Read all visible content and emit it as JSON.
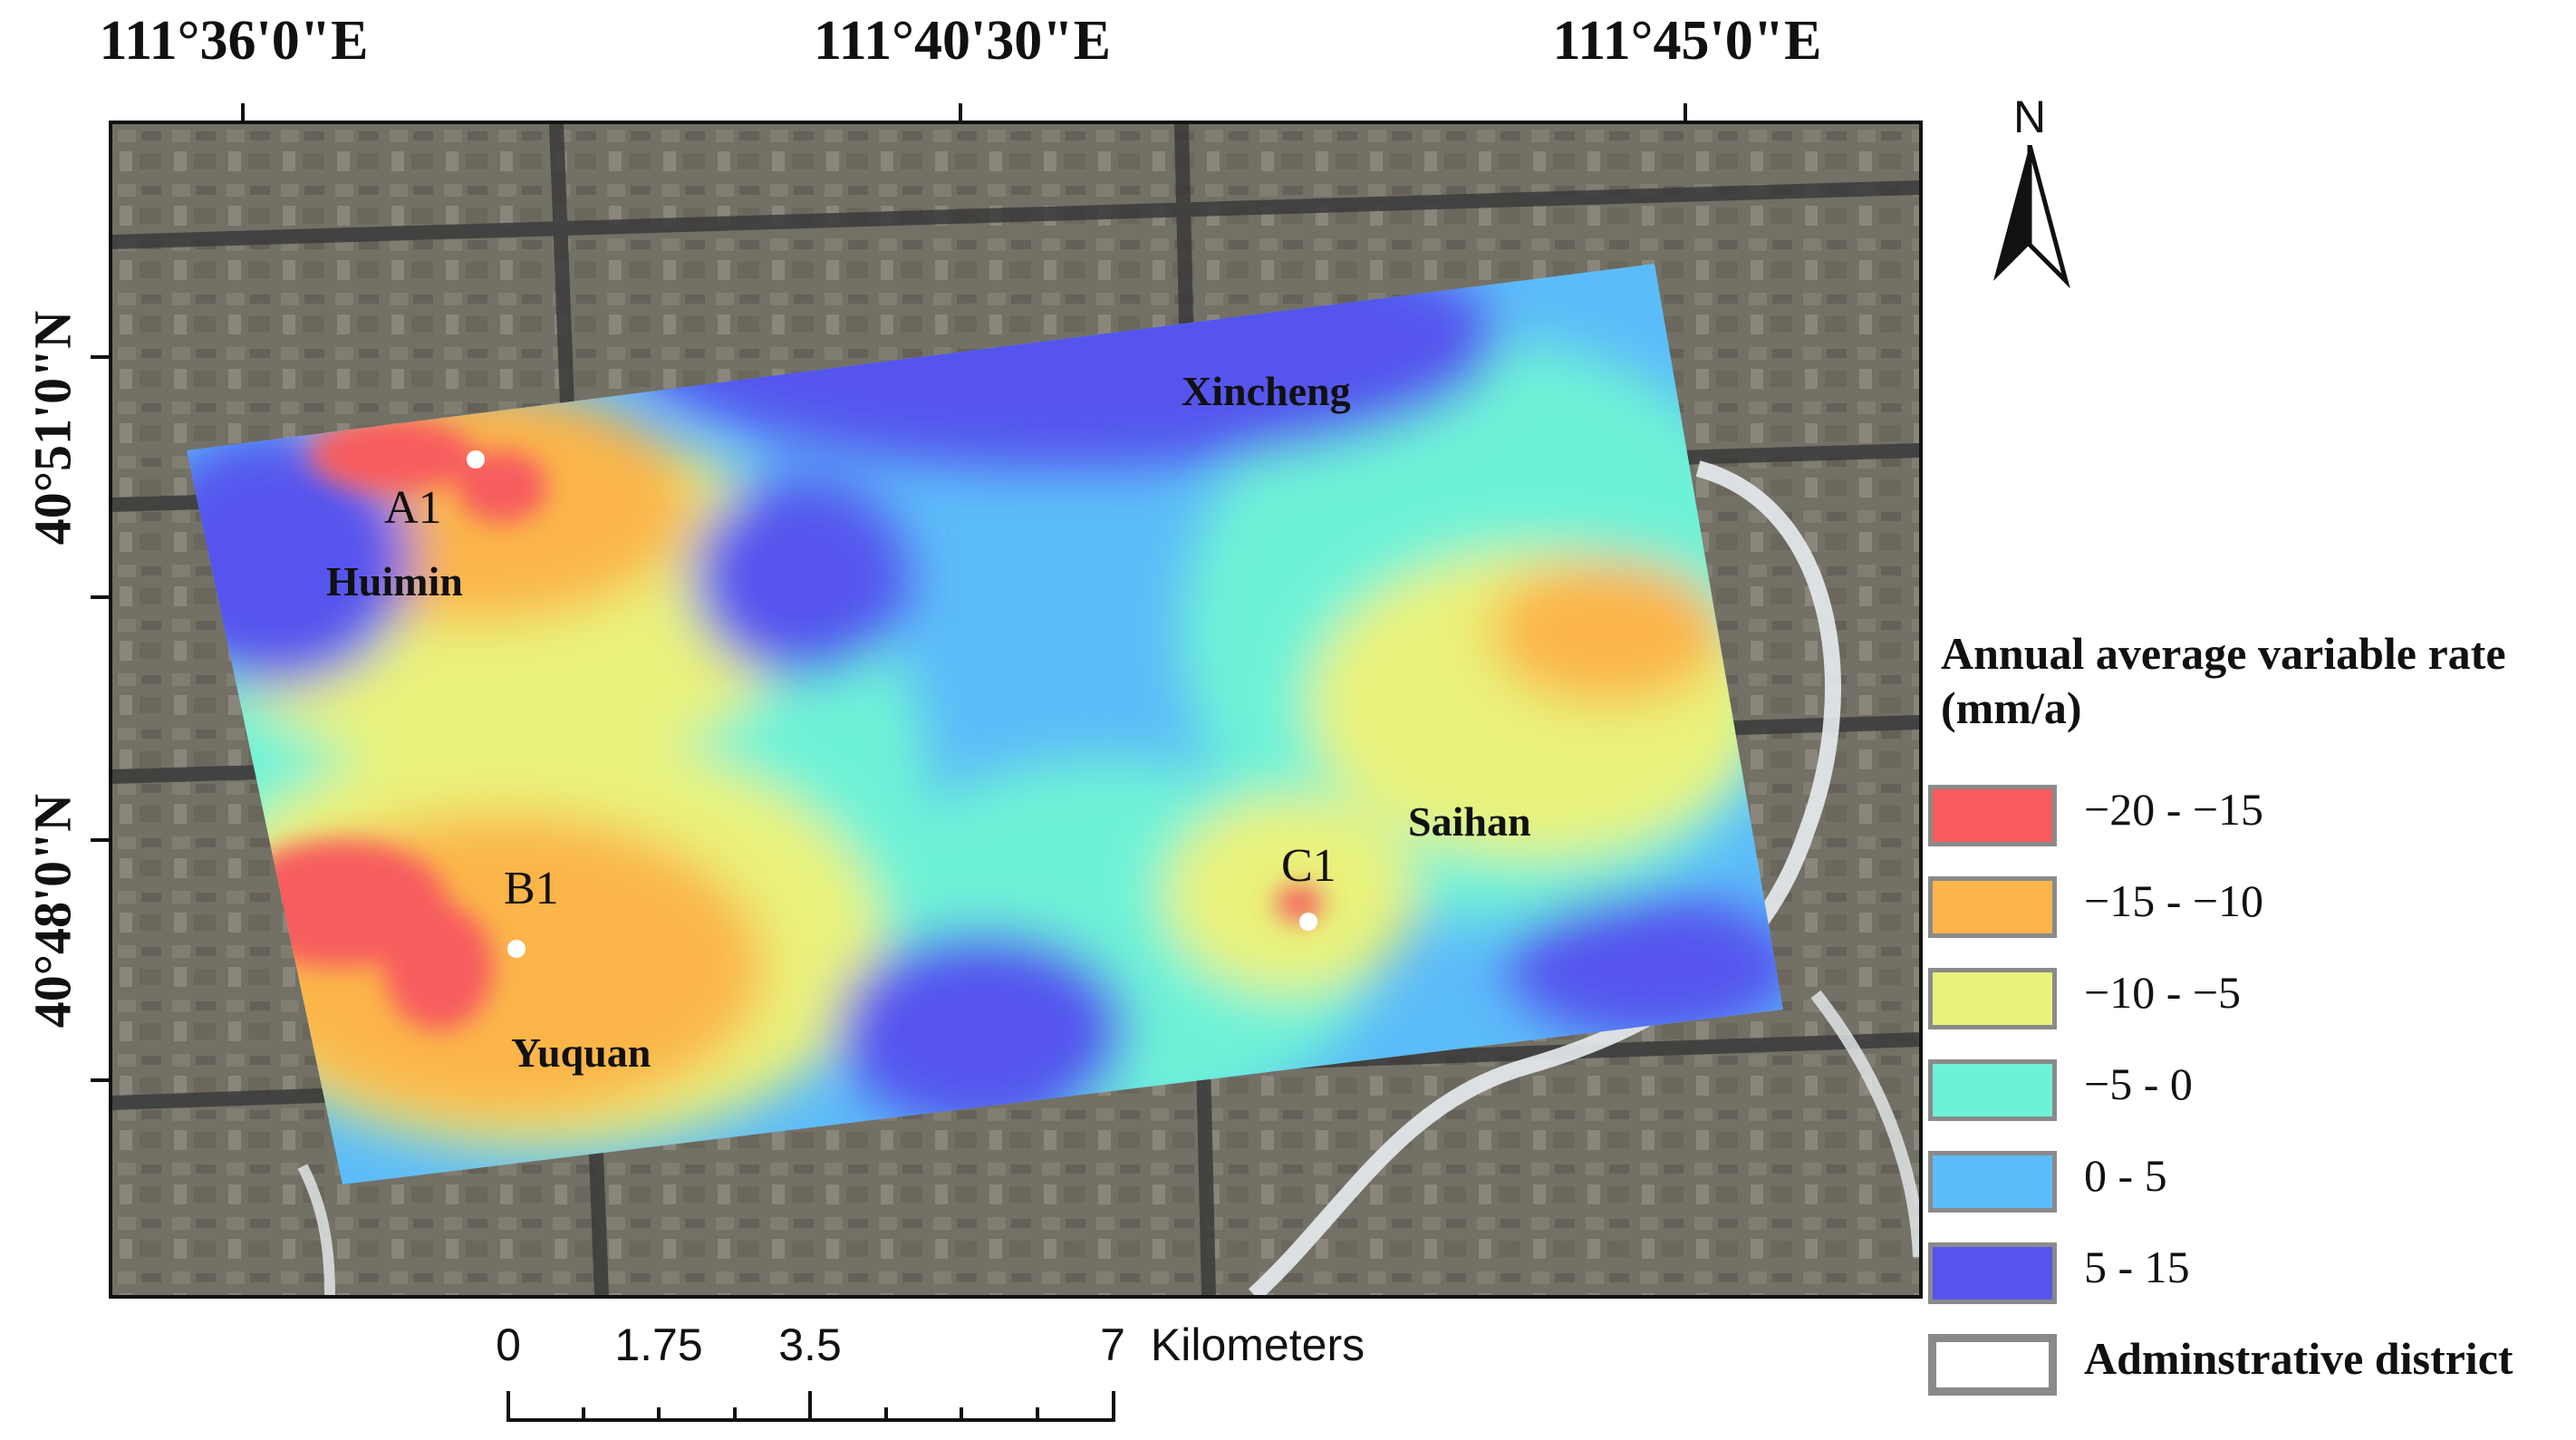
{
  "graticule": {
    "longitude_labels": [
      "111°36'0\"E",
      "111°40'30\"E",
      "111°45'0\"E"
    ],
    "latitude_labels": [
      "40°51'0\"N",
      "40°48'0\"N"
    ]
  },
  "map": {
    "districts": [
      "Xincheng",
      "Huimin",
      "Saihan",
      "Yuquan"
    ],
    "points": [
      "A1",
      "B1",
      "C1"
    ]
  },
  "north_arrow": {
    "letter": "N",
    "icon": "north-arrow-icon"
  },
  "legend": {
    "title_line1": "Annual average variable rate",
    "title_line2": "(mm/a)",
    "classes": [
      {
        "label": "−20 - −15",
        "color": "#f75b5f"
      },
      {
        "label": "−15 - −10",
        "color": "#fbb54a"
      },
      {
        "label": "−10 - −5",
        "color": "#e9f27a"
      },
      {
        "label": "−5 - 0",
        "color": "#6ef2d7"
      },
      {
        "label": "0 - 5",
        "color": "#5cbcf9"
      },
      {
        "label": "5 - 15",
        "color": "#5555ee"
      }
    ],
    "boundary_label": "Adminstrative district"
  },
  "scale_bar": {
    "labels": [
      "0",
      "1.75",
      "3.5",
      "7"
    ],
    "unit": "Kilometers"
  },
  "colors": {
    "frame": "#111111",
    "basemap": "#6e6a5e",
    "road": "#3a3a3a",
    "river": "#e8ecef"
  }
}
